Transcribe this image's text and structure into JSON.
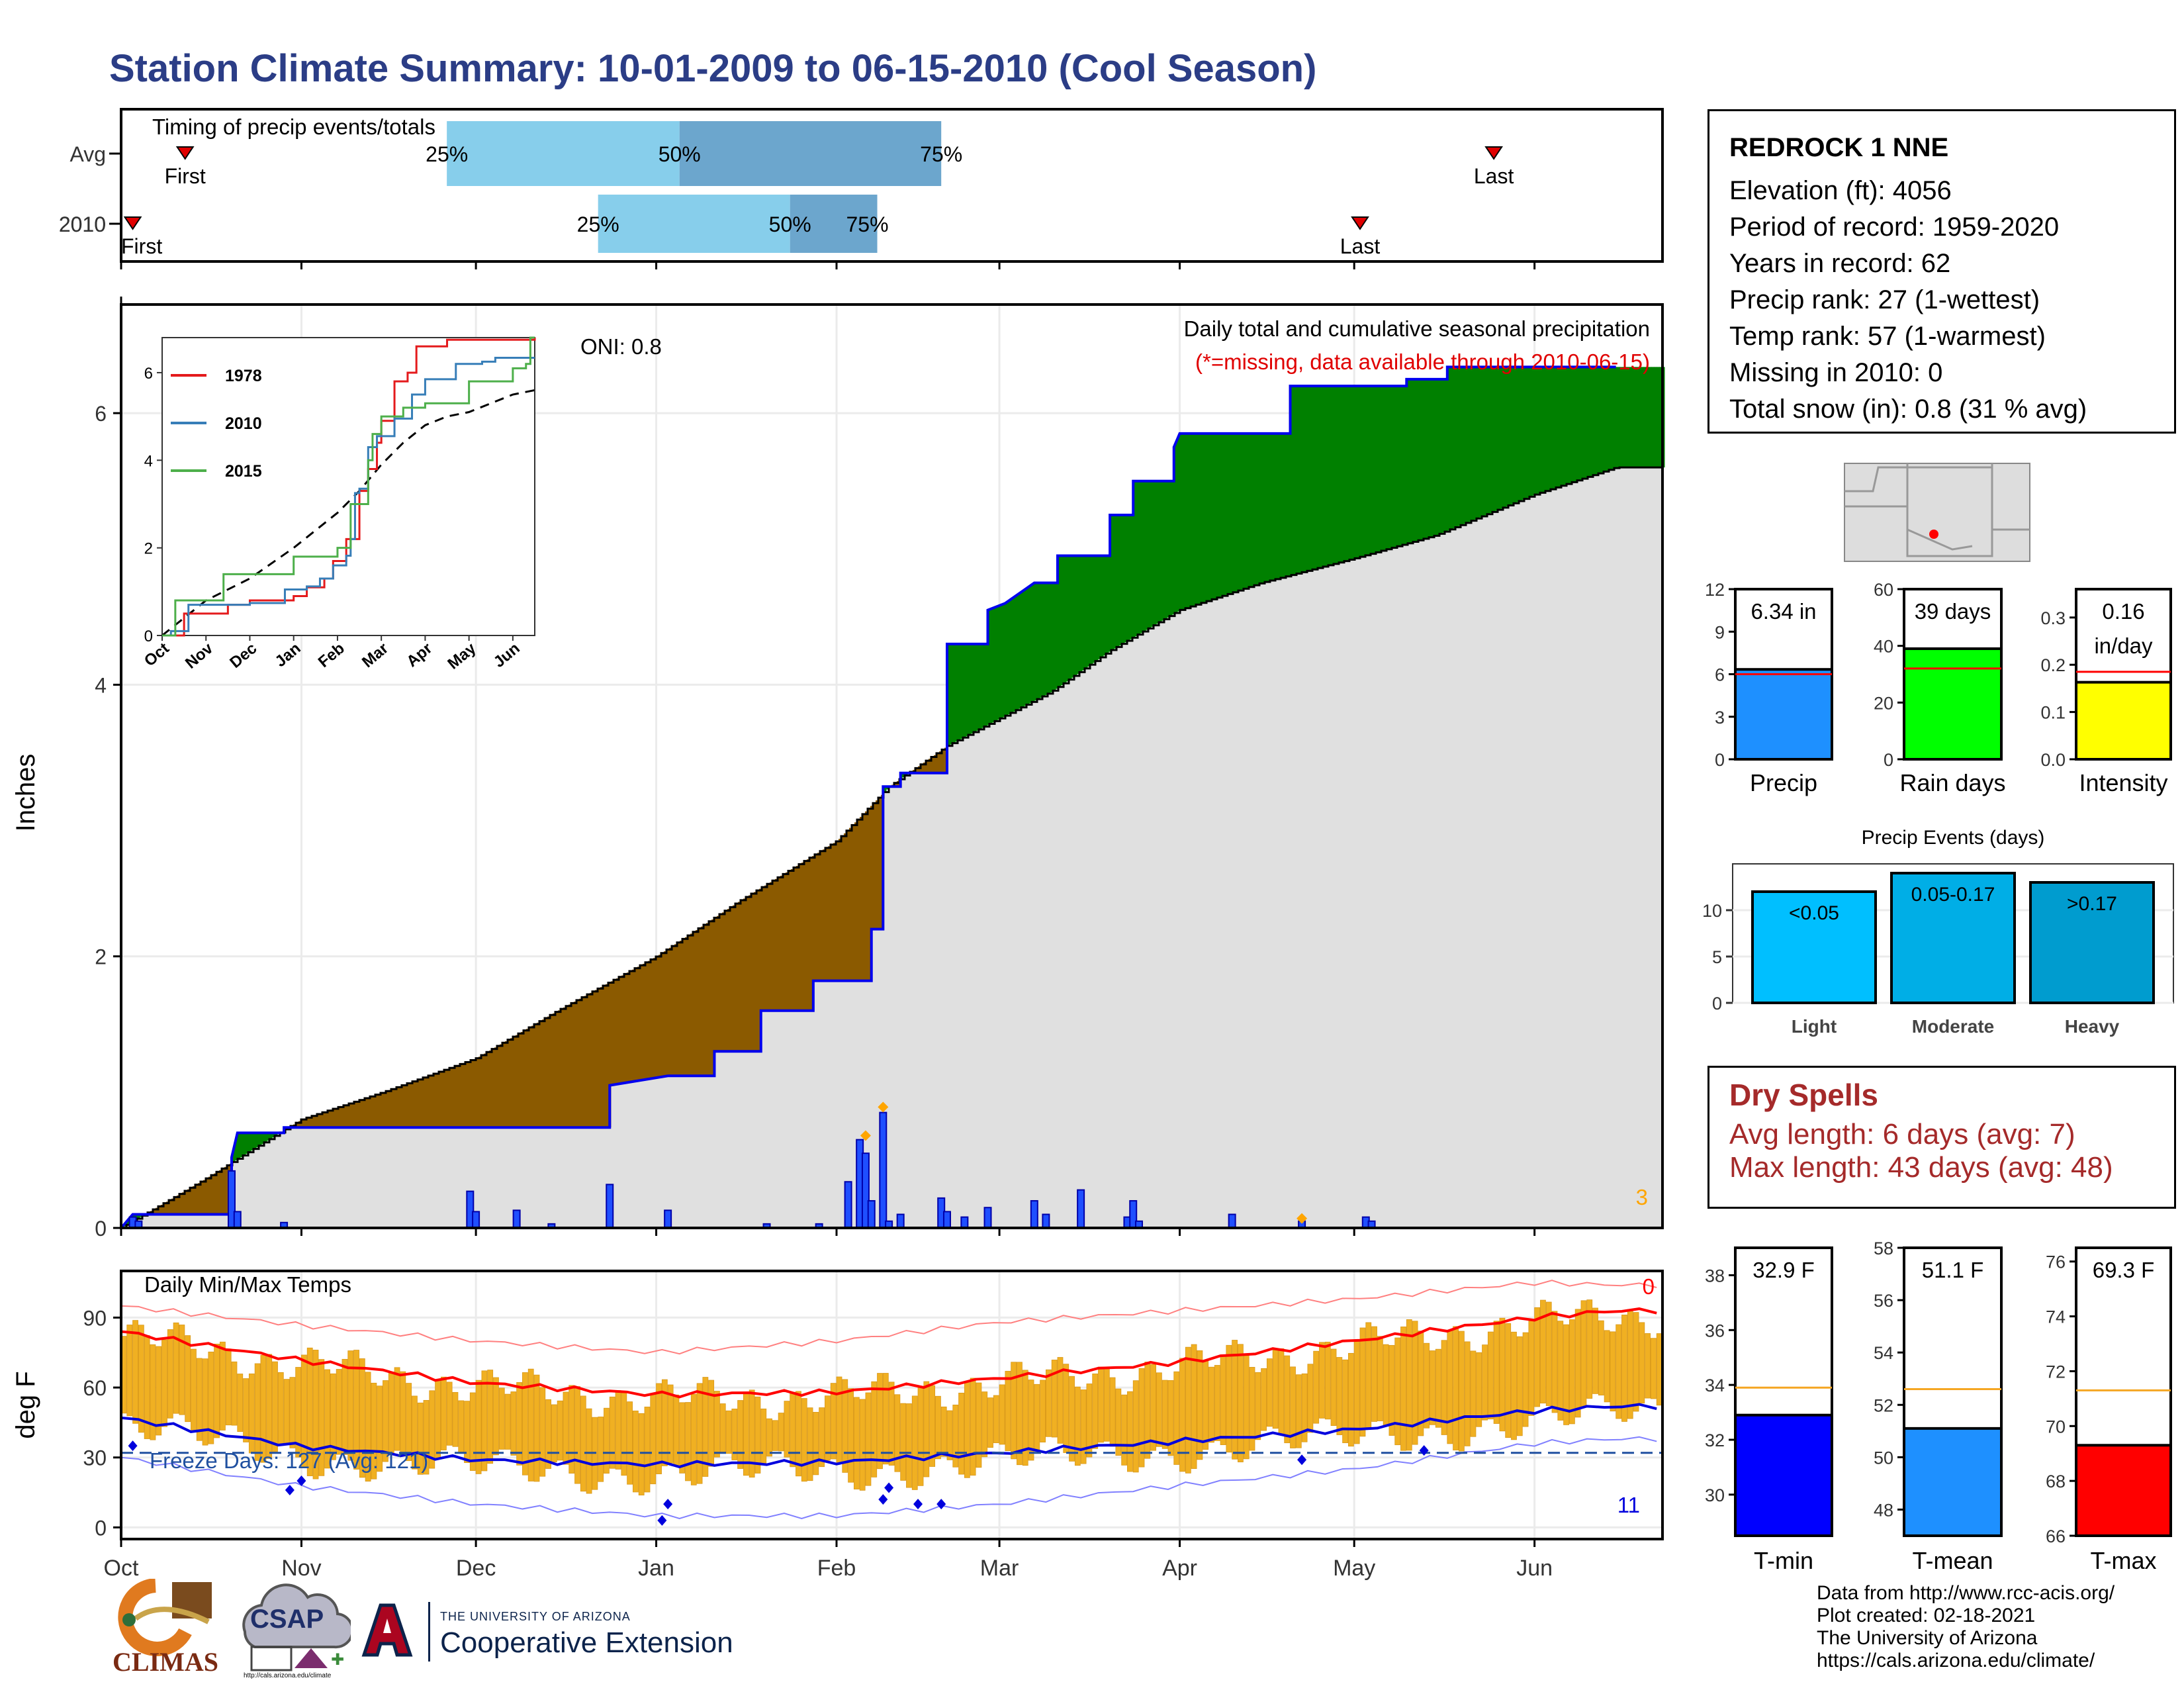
{
  "title": "Station Climate Summary: 10-01-2009 to 06-15-2010 (Cool Season)",
  "colors": {
    "title": "#2b3d86",
    "brown": "#8b5a00",
    "green": "#008000",
    "blue": "#0000ee",
    "orange": "#f0b020",
    "gray_fill": "#e0e0e0",
    "red": "#ff0000"
  },
  "station": {
    "name": "REDROCK 1 NNE",
    "lines": [
      "Elevation (ft): 4056",
      "Period of record: 1959-2020",
      "Years in record: 62",
      "Precip rank: 27 (1-wettest)",
      "Temp rank: 57 (1-warmest)",
      "Missing in 2010: 0",
      "Total snow (in): 0.8 (31 % avg)"
    ]
  },
  "dry_spells": {
    "title": "Dry Spells",
    "avg": "Avg length: 6 days (avg: 7)",
    "max": "Max length: 43 days (avg: 48)"
  },
  "credits": [
    "Data from http://www.rcc-acis.org/",
    "Plot created: 02-18-2021",
    "The University of Arizona",
    "https://cals.arizona.edu/climate/"
  ],
  "logos": {
    "climas": "CLIMAS",
    "csap": "CSAP",
    "csap_url": "http://cals.arizona.edu/climate",
    "ua_small": "THE UNIVERSITY OF ARIZONA",
    "ua_big": "Cooperative Extension"
  },
  "chart_data": [
    {
      "id": "timing",
      "type": "bar",
      "title": "Timing of precip events/totals",
      "rows": [
        {
          "label": "Avg",
          "first": "2009-10-12",
          "q25": "2009-11-26",
          "q50": "2010-01-05",
          "q75": "2010-02-19",
          "last": "2010-05-25",
          "first_label": "First",
          "last_label": "Last"
        },
        {
          "label": "2010",
          "first": "2009-10-03",
          "q25": "2009-12-22",
          "q50": "2010-01-24",
          "q75": "2010-02-08",
          "last": "2010-05-02",
          "first_label": "First",
          "last_label": "Last"
        }
      ],
      "quartile_labels": [
        "25%",
        "50%",
        "75%"
      ]
    },
    {
      "id": "precip",
      "type": "area",
      "title": "Daily total and cumulative seasonal precipitation",
      "subtitle": "(*=missing, data available through 2010-06-15)",
      "oni": "ONI: 0.8",
      "ylabel": "Inches",
      "ylim": [
        0,
        6.8
      ],
      "yticks": [
        0,
        2,
        4,
        6
      ],
      "xticks": [
        "Oct",
        "Nov",
        "Dec",
        "Jan",
        "Feb",
        "Mar",
        "Apr",
        "May",
        "Jun"
      ],
      "corner_count": "3",
      "cumulative_2010": [
        [
          "2009-10-01",
          0
        ],
        [
          "2009-10-03",
          0.1
        ],
        [
          "2009-10-20",
          0.1
        ],
        [
          "2009-10-20",
          0.52
        ],
        [
          "2009-10-21",
          0.7
        ],
        [
          "2009-10-29",
          0.7
        ],
        [
          "2009-10-29",
          0.74
        ],
        [
          "2009-12-24",
          0.74
        ],
        [
          "2009-12-24",
          1.05
        ],
        [
          "2010-01-03",
          1.12
        ],
        [
          "2010-01-11",
          1.12
        ],
        [
          "2010-01-11",
          1.3
        ],
        [
          "2010-01-19",
          1.3
        ],
        [
          "2010-01-19",
          1.6
        ],
        [
          "2010-01-28",
          1.6
        ],
        [
          "2010-01-28",
          1.82
        ],
        [
          "2010-02-07",
          1.82
        ],
        [
          "2010-02-07",
          2.2
        ],
        [
          "2010-02-09",
          2.2
        ],
        [
          "2010-02-09",
          3.25
        ],
        [
          "2010-02-12",
          3.25
        ],
        [
          "2010-02-12",
          3.35
        ],
        [
          "2010-02-20",
          3.35
        ],
        [
          "2010-02-20",
          4.3
        ],
        [
          "2010-02-27",
          4.3
        ],
        [
          "2010-02-27",
          4.55
        ],
        [
          "2010-03-02",
          4.6
        ],
        [
          "2010-03-07",
          4.75
        ],
        [
          "2010-03-11",
          4.75
        ],
        [
          "2010-03-11",
          4.95
        ],
        [
          "2010-03-20",
          4.95
        ],
        [
          "2010-03-20",
          5.25
        ],
        [
          "2010-03-24",
          5.25
        ],
        [
          "2010-03-24",
          5.5
        ],
        [
          "2010-03-31",
          5.5
        ],
        [
          "2010-03-31",
          5.75
        ],
        [
          "2010-04-01",
          5.85
        ],
        [
          "2010-04-20",
          5.85
        ],
        [
          "2010-04-20",
          6.2
        ],
        [
          "2010-05-10",
          6.2
        ],
        [
          "2010-05-10",
          6.25
        ],
        [
          "2010-05-17",
          6.25
        ],
        [
          "2010-05-17",
          6.34
        ],
        [
          "2010-06-15",
          6.34
        ]
      ],
      "cumulative_avg": [
        [
          "2009-10-01",
          0
        ],
        [
          "2009-10-15",
          0.35
        ],
        [
          "2009-11-01",
          0.8
        ],
        [
          "2009-11-15",
          1.0
        ],
        [
          "2009-12-01",
          1.25
        ],
        [
          "2009-12-15",
          1.6
        ],
        [
          "2010-01-01",
          2.0
        ],
        [
          "2010-01-15",
          2.4
        ],
        [
          "2010-02-01",
          2.85
        ],
        [
          "2010-02-10",
          3.25
        ],
        [
          "2010-02-20",
          3.55
        ],
        [
          "2010-03-01",
          3.75
        ],
        [
          "2010-03-10",
          3.95
        ],
        [
          "2010-03-20",
          4.25
        ],
        [
          "2010-04-01",
          4.55
        ],
        [
          "2010-04-15",
          4.75
        ],
        [
          "2010-05-01",
          4.93
        ],
        [
          "2010-05-15",
          5.1
        ],
        [
          "2010-06-01",
          5.4
        ],
        [
          "2010-06-15",
          5.6
        ]
      ],
      "daily": [
        [
          "2009-10-03",
          0.08
        ],
        [
          "2009-10-04",
          0.05
        ],
        [
          "2009-10-20",
          0.42
        ],
        [
          "2009-10-21",
          0.12
        ],
        [
          "2009-10-29",
          0.04
        ],
        [
          "2009-11-30",
          0.27
        ],
        [
          "2009-12-01",
          0.12
        ],
        [
          "2009-12-08",
          0.13
        ],
        [
          "2009-12-14",
          0.03
        ],
        [
          "2009-12-24",
          0.32
        ],
        [
          "2010-01-03",
          0.13
        ],
        [
          "2010-01-20",
          0.03
        ],
        [
          "2010-01-29",
          0.03
        ],
        [
          "2010-02-03",
          0.34
        ],
        [
          "2010-02-05",
          0.65
        ],
        [
          "2010-02-06",
          0.55
        ],
        [
          "2010-02-07",
          0.2
        ],
        [
          "2010-02-09",
          0.85
        ],
        [
          "2010-02-10",
          0.05
        ],
        [
          "2010-02-12",
          0.1
        ],
        [
          "2010-02-19",
          0.22
        ],
        [
          "2010-02-20",
          0.12
        ],
        [
          "2010-02-23",
          0.08
        ],
        [
          "2010-02-27",
          0.15
        ],
        [
          "2010-03-07",
          0.2
        ],
        [
          "2010-03-09",
          0.1
        ],
        [
          "2010-03-15",
          0.28
        ],
        [
          "2010-03-23",
          0.08
        ],
        [
          "2010-03-24",
          0.2
        ],
        [
          "2010-03-25",
          0.05
        ],
        [
          "2010-04-10",
          0.1
        ],
        [
          "2010-04-22",
          0.05
        ],
        [
          "2010-05-03",
          0.08
        ],
        [
          "2010-05-04",
          0.05
        ]
      ],
      "inset": {
        "type": "line",
        "ylim": [
          0,
          6.8
        ],
        "yticks": [
          0,
          2,
          4,
          6
        ],
        "xticks": [
          "Oct",
          "Nov",
          "Dec",
          "Jan",
          "Feb",
          "Mar",
          "Apr",
          "May",
          "Jun"
        ],
        "series": [
          {
            "name": "1978",
            "color": "#e41a1c",
            "values": [
              [
                0,
                0
              ],
              [
                0.5,
                0.5
              ],
              [
                1,
                0.5
              ],
              [
                1.5,
                0.7
              ],
              [
                2,
                0.8
              ],
              [
                3,
                0.9
              ],
              [
                3.3,
                1.1
              ],
              [
                3.7,
                1.3
              ],
              [
                3.9,
                1.7
              ],
              [
                4.2,
                2.2
              ],
              [
                4.5,
                3.3
              ],
              [
                4.7,
                3.8
              ],
              [
                4.9,
                4.4
              ],
              [
                5,
                4.9
              ],
              [
                5.3,
                5.8
              ],
              [
                5.6,
                6.0
              ],
              [
                5.8,
                6.6
              ],
              [
                6.5,
                6.75
              ],
              [
                8.5,
                6.8
              ]
            ]
          },
          {
            "name": "2010",
            "color": "#377eb8",
            "values": [
              [
                0,
                0
              ],
              [
                0.2,
                0.1
              ],
              [
                0.6,
                0.7
              ],
              [
                2,
                0.74
              ],
              [
                2.8,
                1.05
              ],
              [
                3.3,
                1.12
              ],
              [
                3.6,
                1.3
              ],
              [
                3.9,
                1.6
              ],
              [
                4.2,
                1.82
              ],
              [
                4.3,
                2.2
              ],
              [
                4.4,
                3.25
              ],
              [
                4.5,
                3.35
              ],
              [
                4.7,
                4.3
              ],
              [
                4.9,
                4.55
              ],
              [
                5.3,
                4.95
              ],
              [
                5.7,
                5.5
              ],
              [
                6,
                5.85
              ],
              [
                6.6,
                5.85
              ],
              [
                6.7,
                6.2
              ],
              [
                7.3,
                6.25
              ],
              [
                7.6,
                6.34
              ],
              [
                8.5,
                6.34
              ]
            ]
          },
          {
            "name": "2015",
            "color": "#4daf4a",
            "values": [
              [
                0,
                0
              ],
              [
                0.3,
                0.8
              ],
              [
                1,
                0.8
              ],
              [
                1.4,
                1.4
              ],
              [
                2.5,
                1.4
              ],
              [
                3,
                1.8
              ],
              [
                4,
                2.0
              ],
              [
                4.3,
                3.0
              ],
              [
                4.7,
                4.0
              ],
              [
                4.8,
                4.6
              ],
              [
                5.0,
                5.0
              ],
              [
                5.5,
                5.2
              ],
              [
                6,
                5.3
              ],
              [
                6.8,
                5.3
              ],
              [
                7,
                5.8
              ],
              [
                8,
                6.1
              ],
              [
                8.3,
                6.2
              ],
              [
                8.4,
                6.8
              ],
              [
                8.5,
                6.8
              ]
            ]
          }
        ],
        "avg_dashed": [
          [
            0,
            0
          ],
          [
            1,
            0.8
          ],
          [
            2,
            1.3
          ],
          [
            3,
            2.0
          ],
          [
            4,
            2.8
          ],
          [
            4.5,
            3.3
          ],
          [
            5,
            3.9
          ],
          [
            5.5,
            4.4
          ],
          [
            6,
            4.8
          ],
          [
            6.5,
            5.0
          ],
          [
            7,
            5.1
          ],
          [
            7.5,
            5.3
          ],
          [
            8,
            5.5
          ],
          [
            8.5,
            5.6
          ]
        ]
      }
    },
    {
      "id": "temps",
      "type": "bar",
      "title": "Daily Min/Max Temps",
      "ylabel": "deg F",
      "ylim": [
        -5,
        110
      ],
      "yticks": [
        0,
        30,
        60,
        90
      ],
      "xticks": [
        "Oct",
        "Nov",
        "Dec",
        "Jan",
        "Feb",
        "Mar",
        "Apr",
        "May",
        "Jun"
      ],
      "freeze_label": "Freeze Days: 127 (Avg: 121)",
      "freeze_line": 32,
      "count_top": "0",
      "count_bottom": "11",
      "avg_max": [
        [
          0,
          84
        ],
        [
          30,
          72
        ],
        [
          61,
          62
        ],
        [
          92,
          57
        ],
        [
          123,
          58
        ],
        [
          151,
          64
        ],
        [
          182,
          71
        ],
        [
          212,
          80
        ],
        [
          243,
          90
        ],
        [
          257,
          93
        ]
      ],
      "avg_min": [
        [
          0,
          47
        ],
        [
          30,
          35
        ],
        [
          61,
          29
        ],
        [
          92,
          27
        ],
        [
          123,
          28
        ],
        [
          151,
          32
        ],
        [
          182,
          37
        ],
        [
          212,
          42
        ],
        [
          243,
          50
        ],
        [
          257,
          52
        ]
      ],
      "record_max": [
        [
          0,
          95
        ],
        [
          30,
          87
        ],
        [
          61,
          80
        ],
        [
          92,
          75
        ],
        [
          123,
          80
        ],
        [
          151,
          88
        ],
        [
          182,
          93
        ],
        [
          212,
          98
        ],
        [
          243,
          105
        ],
        [
          257,
          104
        ]
      ],
      "record_min": [
        [
          0,
          30
        ],
        [
          30,
          18
        ],
        [
          61,
          10
        ],
        [
          92,
          5
        ],
        [
          123,
          5
        ],
        [
          151,
          10
        ],
        [
          182,
          18
        ],
        [
          212,
          25
        ],
        [
          243,
          36
        ],
        [
          257,
          38
        ]
      ]
    },
    {
      "id": "summary_bars",
      "type": "bar",
      "panels": [
        {
          "label": "Precip",
          "value_label": "6.34 in",
          "value": 6.34,
          "avg": 6.0,
          "ylim": [
            0,
            12
          ],
          "yticks": [
            0,
            3,
            6,
            9,
            12
          ],
          "color": "#1e90ff"
        },
        {
          "label": "Rain days",
          "value_label": "39 days",
          "value": 39,
          "avg": 32,
          "ylim": [
            0,
            60
          ],
          "yticks": [
            0,
            20,
            40,
            60
          ],
          "color": "#00ff00"
        },
        {
          "label": "Intensity",
          "value_label": "0.16",
          "value_label2": "in/day",
          "value": 0.163,
          "avg": 0.185,
          "ylim": [
            0,
            0.36
          ],
          "yticks": [
            0.0,
            0.1,
            0.2,
            0.3
          ],
          "color": "#ffff00"
        }
      ]
    },
    {
      "id": "events",
      "type": "bar",
      "title": "Precip Events (days)",
      "categories": [
        "Light",
        "Moderate",
        "Heavy"
      ],
      "values": [
        12,
        14,
        13
      ],
      "bar_labels": [
        "<0.05",
        "0.05-0.17",
        ">0.17"
      ],
      "colors": [
        "#00bfff",
        "#00aee6",
        "#009ccf"
      ],
      "ylim": [
        0,
        15
      ],
      "yticks": [
        0,
        5,
        10
      ]
    },
    {
      "id": "temp_summary",
      "type": "bar",
      "panels": [
        {
          "label": "T-min",
          "value_label": "32.9 F",
          "value": 32.9,
          "avg": 33.9,
          "ylim": [
            28.5,
            39
          ],
          "yticks": [
            30,
            32,
            34,
            36,
            38
          ],
          "color": "#0000ff"
        },
        {
          "label": "T-mean",
          "value_label": "51.1 F",
          "value": 51.1,
          "avg": 52.6,
          "ylim": [
            47,
            58
          ],
          "yticks": [
            48,
            50,
            52,
            54,
            56,
            58
          ],
          "color": "#1e90ff"
        },
        {
          "label": "T-max",
          "value_label": "69.3 F",
          "value": 69.3,
          "avg": 71.3,
          "ylim": [
            66,
            76.5
          ],
          "yticks": [
            66,
            68,
            70,
            72,
            74,
            76
          ],
          "color": "#ff0000"
        }
      ]
    }
  ]
}
